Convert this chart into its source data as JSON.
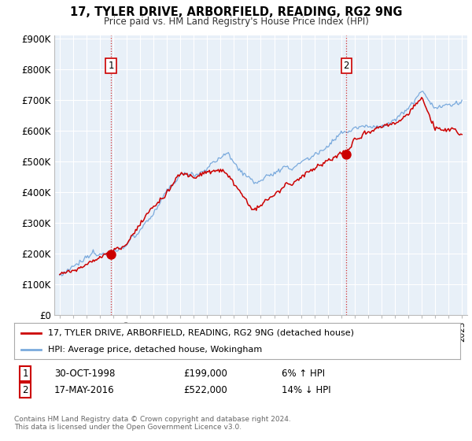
{
  "title": "17, TYLER DRIVE, ARBORFIELD, READING, RG2 9NG",
  "subtitle": "Price paid vs. HM Land Registry's House Price Index (HPI)",
  "yticks": [
    0,
    100000,
    200000,
    300000,
    400000,
    500000,
    600000,
    700000,
    800000,
    900000
  ],
  "ytick_labels": [
    "£0",
    "£100K",
    "£200K",
    "£300K",
    "£400K",
    "£500K",
    "£600K",
    "£700K",
    "£800K",
    "£900K"
  ],
  "background_color": "#ffffff",
  "plot_bg_color": "#e8f0f8",
  "grid_color": "#ffffff",
  "transaction1": {
    "date_num": 1998.83,
    "price": 199000,
    "label": "1",
    "x_label": "30-OCT-1998",
    "price_label": "£199,000",
    "hpi_label": "6% ↑ HPI"
  },
  "transaction2": {
    "date_num": 2016.38,
    "price": 522000,
    "label": "2",
    "x_label": "17-MAY-2016",
    "price_label": "£522,000",
    "hpi_label": "14% ↓ HPI"
  },
  "legend_line1": "17, TYLER DRIVE, ARBORFIELD, READING, RG2 9NG (detached house)",
  "legend_line2": "HPI: Average price, detached house, Wokingham",
  "footnote": "Contains HM Land Registry data © Crown copyright and database right 2024.\nThis data is licensed under the Open Government Licence v3.0.",
  "line_color_red": "#cc0000",
  "line_color_blue": "#7aaadd",
  "vline_color": "#cc0000",
  "box_color": "#cc0000",
  "year_start": 1995,
  "year_end": 2025
}
